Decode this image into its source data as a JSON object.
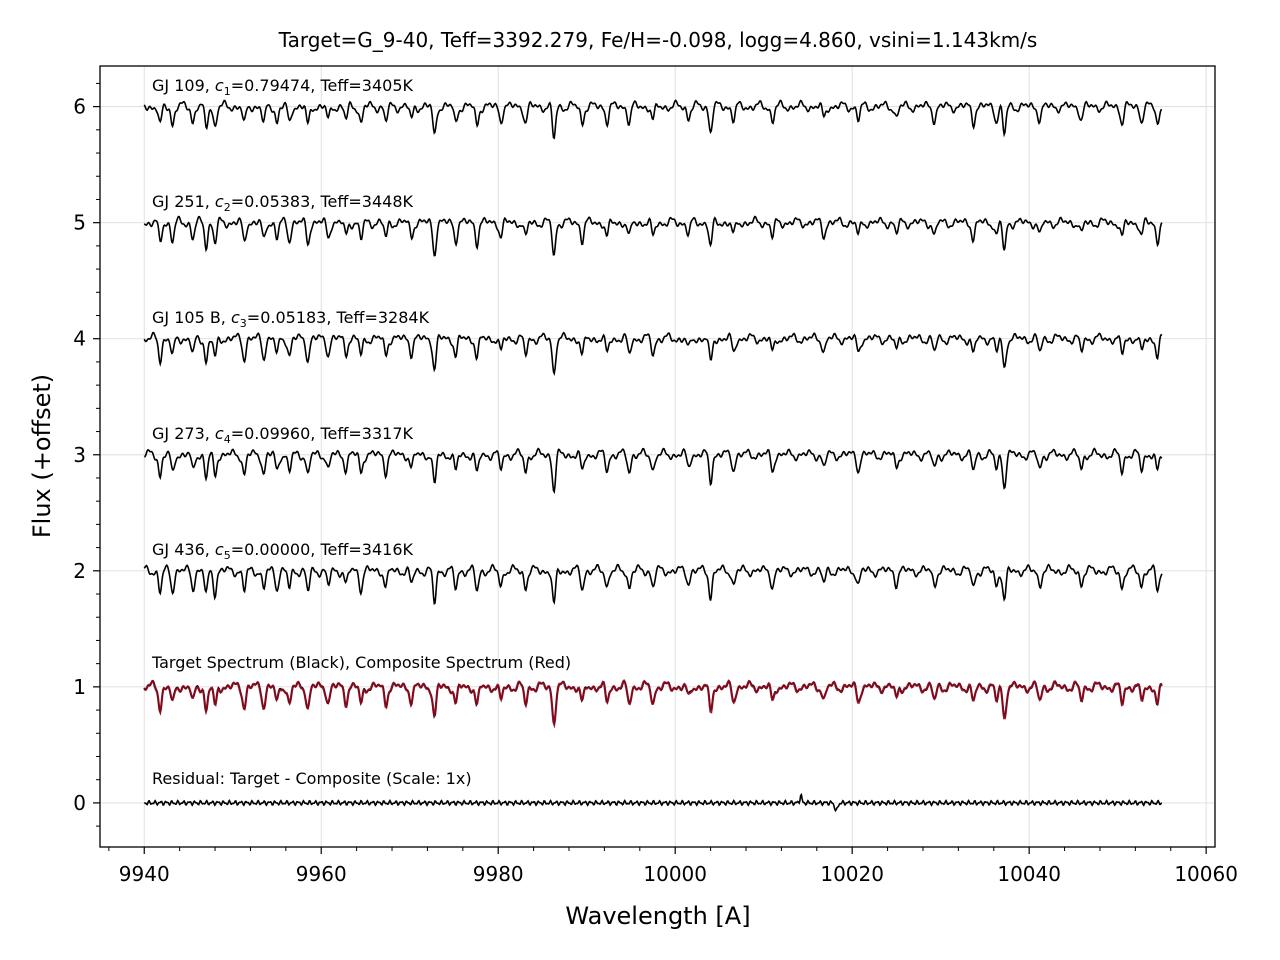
{
  "chart_data": {
    "type": "line",
    "title": "Target=G_9-40, Teff=3392.279, Fe/H=-0.098, logg=4.860, vsini=1.143km/s",
    "xlabel": "Wavelength [A]",
    "ylabel": "Flux (+offset)",
    "xlim": [
      9935,
      10061
    ],
    "ylim": [
      -0.38,
      6.35
    ],
    "xticks": [
      9940,
      9960,
      9980,
      10000,
      10020,
      10040,
      10060
    ],
    "xtick_labels": [
      "9940",
      "9960",
      "9980",
      "10000",
      "10020",
      "10040",
      "10060"
    ],
    "yticks": [
      0,
      1,
      2,
      3,
      4,
      5,
      6
    ],
    "ytick_labels": [
      "0",
      "1",
      "2",
      "3",
      "4",
      "5",
      "6"
    ],
    "grid": true,
    "x_range_data": [
      9940,
      10055
    ],
    "absorption_lines": [
      {
        "x": 9941.8,
        "depth": 0.18
      },
      {
        "x": 9943.2,
        "depth": 0.16
      },
      {
        "x": 9945.5,
        "depth": 0.14
      },
      {
        "x": 9947.0,
        "depth": 0.2
      },
      {
        "x": 9948.0,
        "depth": 0.18
      },
      {
        "x": 9951.3,
        "depth": 0.17
      },
      {
        "x": 9953.5,
        "depth": 0.16
      },
      {
        "x": 9955.0,
        "depth": 0.14
      },
      {
        "x": 9956.4,
        "depth": 0.15
      },
      {
        "x": 9958.5,
        "depth": 0.18
      },
      {
        "x": 9960.8,
        "depth": 0.13
      },
      {
        "x": 9962.8,
        "depth": 0.12
      },
      {
        "x": 9964.5,
        "depth": 0.15
      },
      {
        "x": 9967.3,
        "depth": 0.14
      },
      {
        "x": 9970.2,
        "depth": 0.12
      },
      {
        "x": 9972.8,
        "depth": 0.27
      },
      {
        "x": 9975.2,
        "depth": 0.15
      },
      {
        "x": 9977.6,
        "depth": 0.17
      },
      {
        "x": 9980.3,
        "depth": 0.12
      },
      {
        "x": 9983.1,
        "depth": 0.14
      },
      {
        "x": 9986.3,
        "depth": 0.3
      },
      {
        "x": 9989.5,
        "depth": 0.15
      },
      {
        "x": 9992.3,
        "depth": 0.13
      },
      {
        "x": 9994.8,
        "depth": 0.14
      },
      {
        "x": 9997.5,
        "depth": 0.13
      },
      {
        "x": 10001.5,
        "depth": 0.1
      },
      {
        "x": 10004.0,
        "depth": 0.22
      },
      {
        "x": 10006.6,
        "depth": 0.12
      },
      {
        "x": 10011.0,
        "depth": 0.13
      },
      {
        "x": 10016.8,
        "depth": 0.11
      },
      {
        "x": 10020.7,
        "depth": 0.12
      },
      {
        "x": 10025.0,
        "depth": 0.1
      },
      {
        "x": 10029.3,
        "depth": 0.12
      },
      {
        "x": 10033.7,
        "depth": 0.14
      },
      {
        "x": 10036.3,
        "depth": 0.12
      },
      {
        "x": 10037.2,
        "depth": 0.26
      },
      {
        "x": 10041.2,
        "depth": 0.12
      },
      {
        "x": 10045.9,
        "depth": 0.11
      },
      {
        "x": 10050.5,
        "depth": 0.14
      },
      {
        "x": 10052.7,
        "depth": 0.12
      },
      {
        "x": 10054.5,
        "depth": 0.16
      }
    ],
    "series": [
      {
        "offset": 6,
        "label": "GJ 109, c1=0.79474, Teff=3405K",
        "color": "#000000"
      },
      {
        "offset": 5,
        "label": "GJ 251, c2=0.05383, Teff=3448K",
        "color": "#000000"
      },
      {
        "offset": 4,
        "label": "GJ 105 B, c3=0.05183, Teff=3284K",
        "color": "#000000"
      },
      {
        "offset": 3,
        "label": "GJ 273, c4=0.09960, Teff=3317K",
        "color": "#000000"
      },
      {
        "offset": 2,
        "label": "GJ 436, c5=0.00000, Teff=3416K",
        "color": "#000000"
      },
      {
        "offset": 1,
        "label": "Target Spectrum (Black), Composite Spectrum (Red)",
        "color": "#000000",
        "composite_color": "#8b0a1f"
      },
      {
        "offset": 0,
        "label": "Residual: Target - Composite (Scale: 1x)",
        "color": "#000000"
      }
    ],
    "annotations": {
      "s0": {
        "pre": "GJ 109, ",
        "var": "c",
        "sub": "1",
        "post": "=0.79474, Teff=3405K"
      },
      "s1": {
        "pre": "GJ 251, ",
        "var": "c",
        "sub": "2",
        "post": "=0.05383, Teff=3448K"
      },
      "s2": {
        "pre": "GJ 105 B, ",
        "var": "c",
        "sub": "3",
        "post": "=0.05183, Teff=3284K"
      },
      "s3": {
        "pre": "GJ 273, ",
        "var": "c",
        "sub": "4",
        "post": "=0.09960, Teff=3317K"
      },
      "s4": {
        "pre": "GJ 436, ",
        "var": "c",
        "sub": "5",
        "post": "=0.00000, Teff=3416K"
      },
      "s5": "Target Spectrum (Black), Composite Spectrum (Red)",
      "s6": "Residual: Target - Composite (Scale: 1x)"
    }
  }
}
